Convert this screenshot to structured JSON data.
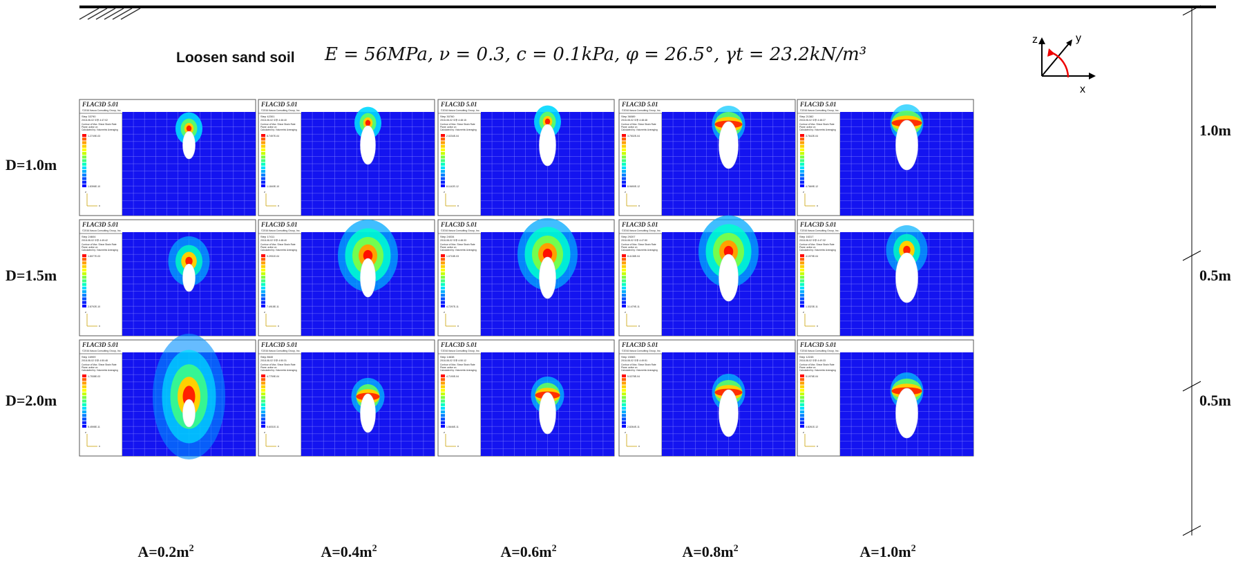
{
  "header": {
    "soil_label": "Loosen sand soil",
    "params_text": "E = 56MPa, ν = 0.3, c = 0.1kPa, φ = 26.5°, γt = 23.2kN/m³"
  },
  "axes_icon": {
    "labels": [
      "z",
      "y",
      "x"
    ]
  },
  "rows": [
    {
      "label": "D=1.0m",
      "depth_label": "1.0m"
    },
    {
      "label": "D=1.5m",
      "depth_label": "0.5m"
    },
    {
      "label": "D=2.0m",
      "depth_label": "0.5m"
    }
  ],
  "columns": [
    {
      "label": "A=0.2m",
      "sup": "2"
    },
    {
      "label": "A=0.4m",
      "sup": "2"
    },
    {
      "label": "A=0.6m",
      "sup": "2"
    },
    {
      "label": "A=0.8m",
      "sup": "2"
    },
    {
      "label": "A=1.0m",
      "sup": "2"
    }
  ],
  "panel_header": {
    "software": "FLAC3D 5.01",
    "company": "©2016 Itasca Consulting Group, Inc.",
    "legend_title": "Contour of Max. Shear Strain Rate",
    "legend_sub1": "Plane: active on",
    "legend_sub2": "Calculated by: Volumetric Averaging"
  },
  "panels": [
    [
      {
        "step": "Step 33790",
        "date": "2018-08-02 오후 4:47:02",
        "max": "1.2749E-03",
        "min": "1.8396E-10",
        "hotspot": "small"
      },
      {
        "step": "Step 42301",
        "date": "2018-08-02 오후 4:46:40",
        "max": "8.7497E-04",
        "min": "1.1840E-10",
        "hotspot": "small"
      },
      {
        "step": "Step 30760",
        "date": "2018-08-02 오후 4:48:15",
        "max": "2.0234E-04",
        "min": "8.1142E-12",
        "hotspot": "small"
      },
      {
        "step": "Step 36089",
        "date": "2018-08-02 오후 4:48:48",
        "max": "3.7502E-04",
        "min": "8.9690E-12",
        "hotspot": "arch"
      },
      {
        "step": "Step 21382",
        "date": "2018-08-02 오후 4:48:27",
        "max": "3.7642E-04",
        "min": "4.7669E-12",
        "hotspot": "arch"
      }
    ],
    [
      {
        "step": "Step 24604",
        "date": "2018-08-02 오후 4:49:42",
        "max": "1.8077E-03",
        "min": "2.8792E-10",
        "hotspot": "medium"
      },
      {
        "step": "Step 17411",
        "date": "2018-08-02 오후 4:48:40",
        "max": "9.2931E-04",
        "min": "7.4918E-11",
        "hotspot": "large"
      },
      {
        "step": "Step 24034",
        "date": "2018-08-02 오후 4:48:33",
        "max": "1.0718E-03",
        "min": "4.7297E-11",
        "hotspot": "large"
      },
      {
        "step": "Step 29207",
        "date": "2018-08-02 오후 4:47:50",
        "max": "8.4138E-04",
        "min": "3.1479E-11",
        "hotspot": "large"
      },
      {
        "step": "Step 16317",
        "date": "2018-08-02 오후 4:47:32",
        "max": "4.1979E-04",
        "min": "1.3323E-11",
        "hotspot": "medium"
      }
    ],
    [
      {
        "step": "Step 16909",
        "date": "2018-08-02 오후 4:50:48",
        "max": "1.7538E-03",
        "min": "5.4598E-11",
        "hotspot": "tall"
      },
      {
        "step": "Step 8640",
        "date": "2018-08-02 오후 4:50:31",
        "max": "4.7759E-04",
        "min": "5.6031E-11",
        "hotspot": "arch"
      },
      {
        "step": "Step 14638",
        "date": "2018-08-02 오후 4:50:12",
        "max": "4.7190E-04",
        "min": "1.5646E-11",
        "hotspot": "arch"
      },
      {
        "step": "Step 15083",
        "date": "2018-08-02 오후 4:49:51",
        "max": "5.0278E-04",
        "min": "2.8264E-11",
        "hotspot": "arch"
      },
      {
        "step": "Step 12245",
        "date": "2018-08-02 오후 4:49:33",
        "max": "5.1976E-04",
        "min": "4.8261E-12",
        "hotspot": "arch"
      }
    ]
  ],
  "legend_colors": [
    "#ff0000",
    "#ff6000",
    "#ffa000",
    "#ffd000",
    "#ffff00",
    "#c8ff00",
    "#80ff40",
    "#40ff80",
    "#00ffc0",
    "#00e0ff",
    "#00b0ff",
    "#0080ff",
    "#0050ff",
    "#0020ff",
    "#0000ff"
  ],
  "colors": {
    "field": "#1414f0",
    "grid": "#8a8aff"
  }
}
